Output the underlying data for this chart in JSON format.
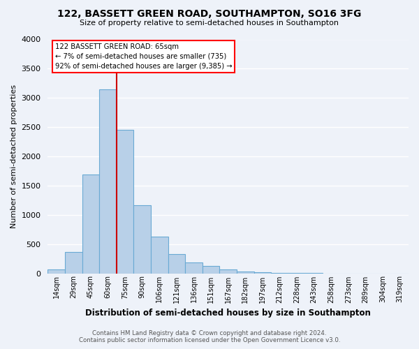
{
  "title": "122, BASSETT GREEN ROAD, SOUTHAMPTON, SO16 3FG",
  "subtitle": "Size of property relative to semi-detached houses in Southampton",
  "xlabel": "Distribution of semi-detached houses by size in Southampton",
  "ylabel": "Number of semi-detached properties",
  "bar_labels": [
    "14sqm",
    "29sqm",
    "45sqm",
    "60sqm",
    "75sqm",
    "90sqm",
    "106sqm",
    "121sqm",
    "136sqm",
    "151sqm",
    "167sqm",
    "182sqm",
    "197sqm",
    "212sqm",
    "228sqm",
    "243sqm",
    "258sqm",
    "273sqm",
    "289sqm",
    "304sqm",
    "319sqm"
  ],
  "bar_values": [
    70,
    360,
    1690,
    3150,
    2450,
    1160,
    630,
    330,
    185,
    120,
    70,
    35,
    15,
    5,
    2,
    1,
    0,
    0,
    0,
    0,
    0
  ],
  "bar_color": "#b8d0e8",
  "bar_edge_color": "#6aaad4",
  "property_label": "122 BASSETT GREEN ROAD: 65sqm",
  "pct_smaller": 7,
  "count_smaller": 735,
  "pct_larger": 92,
  "count_larger": 9385,
  "vline_bin": 3,
  "vline_color": "#cc0000",
  "ylim": [
    0,
    4000
  ],
  "yticks": [
    0,
    500,
    1000,
    1500,
    2000,
    2500,
    3000,
    3500,
    4000
  ],
  "bg_color": "#eef2f9",
  "grid_color": "#ffffff",
  "footer1": "Contains HM Land Registry data © Crown copyright and database right 2024.",
  "footer2": "Contains public sector information licensed under the Open Government Licence v3.0."
}
